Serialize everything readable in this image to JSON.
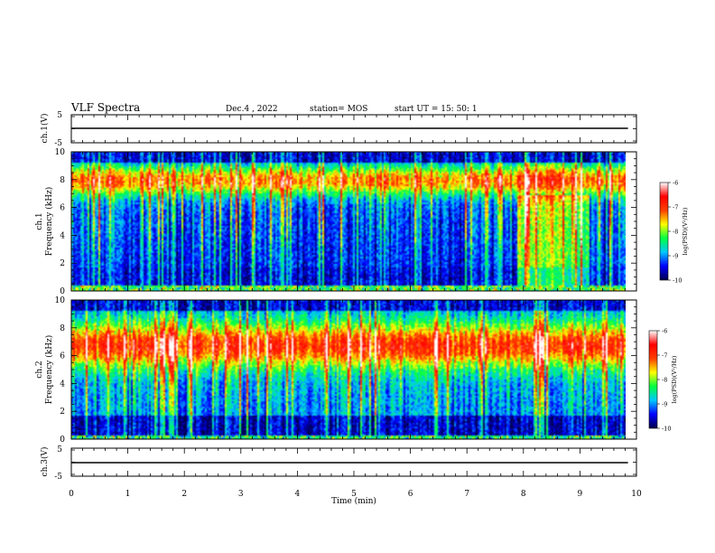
{
  "header": {
    "title": "VLF Spectra",
    "date": "Dec.4 , 2022",
    "station": "station= MOS",
    "start": "start  UT =   15: 50: 1"
  },
  "chart_data": [
    {
      "type": "line",
      "panel": "ch1-waveform",
      "ylabel": "ch.1(V)",
      "ylim": [
        -5,
        5
      ],
      "yticks": [
        "5",
        "-5"
      ],
      "xlim": [
        0,
        10
      ],
      "x": [
        0,
        9.85
      ],
      "y": [
        0,
        0
      ]
    },
    {
      "type": "heatmap",
      "panel": "ch1-spectrogram",
      "ylabel_line1": "ch.1",
      "ylabel_line2": "Frequency (kHz)",
      "ylim": [
        0,
        10
      ],
      "yticks": [
        "0",
        "2",
        "4",
        "6",
        "8",
        "10"
      ],
      "xlim": [
        0,
        10
      ],
      "data_xlim": [
        0,
        9.85
      ],
      "colorbar": {
        "label": "log(PSD)(V²/Hz)",
        "ticks": [
          "-6",
          "-7",
          "-8",
          "-9",
          "-10"
        ],
        "range": [
          -10,
          -6
        ]
      },
      "colormap": [
        "#00004a",
        "#0000ff",
        "#00c8ff",
        "#00ff40",
        "#ffff00",
        "#ff4000",
        "#ff0000",
        "#ffffff"
      ]
    },
    {
      "type": "heatmap",
      "panel": "ch2-spectrogram",
      "ylabel_line1": "ch.2",
      "ylabel_line2": "Frequency (kHz)",
      "ylim": [
        0,
        10
      ],
      "yticks": [
        "0",
        "2",
        "4",
        "6",
        "8",
        "10"
      ],
      "xlim": [
        0,
        10
      ],
      "data_xlim": [
        0,
        9.85
      ],
      "colorbar": {
        "label": "log(PSD)(V²/Hz)",
        "ticks": [
          "-6",
          "-7",
          "-8",
          "-9",
          "-10"
        ],
        "range": [
          -10,
          -6
        ]
      },
      "colormap": [
        "#00004a",
        "#0000ff",
        "#00c8ff",
        "#00ff40",
        "#ffff00",
        "#ff4000",
        "#ff0000",
        "#ffffff"
      ]
    },
    {
      "type": "line",
      "panel": "ch3-waveform",
      "ylabel": "ch.3(V)",
      "ylim": [
        -5,
        5
      ],
      "yticks": [
        "5",
        "-5"
      ],
      "xlim": [
        0,
        10
      ],
      "x": [
        0,
        9.85
      ],
      "y": [
        0,
        0
      ]
    }
  ],
  "xaxis": {
    "label": "Time  (min)",
    "ticks": [
      "0",
      "1",
      "2",
      "3",
      "4",
      "5",
      "6",
      "7",
      "8",
      "9",
      "10"
    ]
  }
}
